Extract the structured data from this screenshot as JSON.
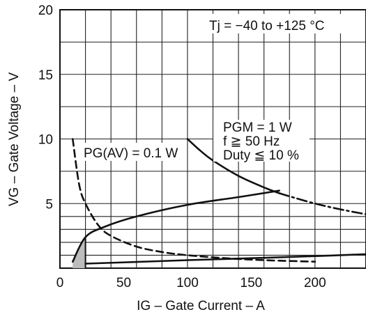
{
  "chart_data": {
    "type": "line",
    "xlabel": "IG – Gate Current – A",
    "ylabel": "VG – Gate Voltage – V",
    "xlim": [
      0,
      240
    ],
    "ylim": [
      0,
      20
    ],
    "x_ticks": [
      0,
      50,
      100,
      150,
      200
    ],
    "y_ticks": [
      5,
      10,
      15,
      20
    ],
    "grid": true,
    "grid_x": [
      0,
      20,
      40,
      60,
      80,
      100,
      120,
      140,
      160,
      180,
      200,
      220,
      240
    ],
    "grid_y": [
      0,
      1,
      2,
      3,
      4,
      5,
      7.5,
      10,
      12.5,
      15,
      17.5,
      20
    ],
    "annotations": {
      "tj": "Tj = −40 to +125 °C",
      "pgav": "PG(AV) = 0.1 W",
      "pgm1": "PGM = 1 W",
      "pgm2": "f ≧ 50 Hz",
      "pgm3": "Duty ≦ 10 %"
    },
    "series": [
      {
        "style": "solid",
        "x": [
          10,
          20,
          35,
          60,
          100,
          140,
          172
        ],
        "y": [
          0.5,
          2.4,
          3.2,
          4.0,
          4.9,
          5.5,
          6.0
        ]
      },
      {
        "style": "solid",
        "x": [
          20,
          60,
          100,
          150,
          200,
          240
        ],
        "y": [
          0.35,
          0.48,
          0.62,
          0.77,
          0.93,
          1.08
        ]
      },
      {
        "style": "dashed",
        "x": [
          10,
          15,
          20,
          30,
          40,
          60,
          80,
          100,
          130,
          160,
          200
        ],
        "y": [
          10,
          6.5,
          5,
          3.33,
          2.5,
          1.67,
          1.25,
          1.0,
          0.77,
          0.62,
          0.5
        ]
      },
      {
        "style": "solid",
        "x": [
          100,
          110,
          120,
          140,
          160,
          172
        ],
        "y": [
          10,
          9.1,
          8.33,
          7.14,
          6.25,
          5.8
        ]
      },
      {
        "style": "dash-dot",
        "x": [
          172,
          180,
          200,
          220,
          240
        ],
        "y": [
          5.8,
          5.56,
          5.0,
          4.55,
          4.17
        ]
      }
    ]
  }
}
